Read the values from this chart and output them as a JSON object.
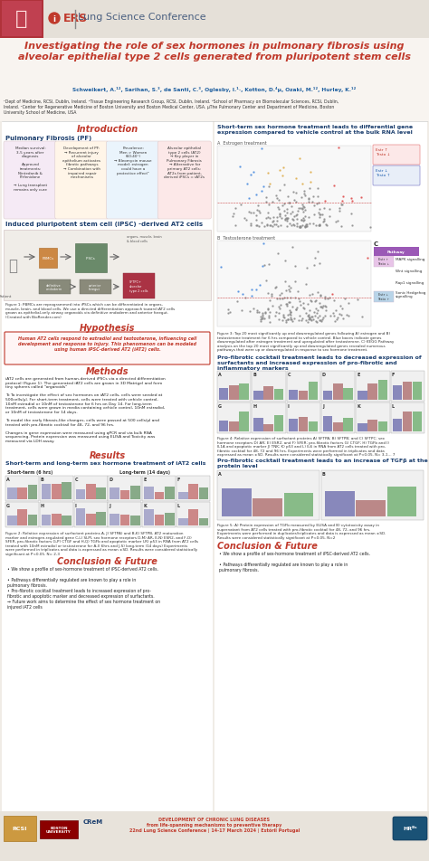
{
  "bg_color": "#f0ece6",
  "header_bg": "#e5e0d8",
  "title_text": "Investigating the role of sex hormones in pulmonary fibrosis using\nalveolar epithelial type 2 cells generated from pluripotent stem cells",
  "title_color": "#c0392b",
  "authors": "Schweikert, A.¹², Sarihan, S.³, de Santi, C.³, Oglesby, I.¹·, Kotton, D.⁴µ, Ozaki, M.¹², Hurley, K.¹²",
  "affiliations": "¹Dept of Medicine, RCSI, Dublin, Ireland. ²Tissue Engineering Research Group, RCSI, Dublin, Ireland. ³School of Pharmacy on Biomolecular Sciences, RCSI, Dublin,\nIreland. ⁴Center for Regenerative Medicine of Boston University and Boston Medical Center, USA. µThe Pulmonary Center and Department of Medicine, Boston\nUniversity School of Medicine, USA",
  "intro_title": "Introduction",
  "pf_title": "Pulmonary Fibrosis (PF)",
  "pf_box_colors": [
    "#f5eaf5",
    "#fff5e8",
    "#eaf4fc",
    "#fce8e8"
  ],
  "pf_box_contents": [
    "Median survival:\n3-5 years after\ndiagnosis\n\nApproved\ntreatments:\nNintedanib &\nPirfenidone\n\n→ Lung transplant\nremains only cure",
    "Development of PF:\n→ Recurrent injury\nof alveolar\nepithelium activates\nfibrotic pathways\n→ Combination with\nimpaired repair\nmechanisms",
    "Prevalence:\nMen > Women\n(60:40°)\n→ Bleomycin mouse\nmodel: estrogen\ncould have a\nprotective effect²",
    "Alveolar epithelial\ntype 2 cells (AT2)\n→ Key player in\nPulmonary Fibrosis\n→ Alternative for\nprimary AT2 cells:\nAT2s from patient-\nderived iPSCs = iAT2s"
  ],
  "ipsc_title": "Induced pluripotent stem cell (iPSC) -derived AT2 cells",
  "fig1_caption": "Figure 1: PBMCs are reprogrammed into iPSCs which can be differentiated in organs,\nmuscle, brain, and blood cells. We use a directed differentiation approach toward iAT2 cells\ngrown as epithelial-only airway organoids via definitive endoderm and anterior foregut.\n(Created with BioRender.com)",
  "hypothesis_title": "Hypothesis",
  "hypothesis_text": "Human AT2 cells respond to estradiol and testosterone, influencing cell\ndevelopment and response to injury. This phenomenon can be modeled\nusing human iPSC-derived AT2 (iAT2) cells.",
  "methods_title": "Methods",
  "methods_text": "iAT2 cells are generated from human-derived iPSCs via a directed differentiation\nprotocol (Figure 1). The generated iAT2 cells are grown in 3D Matrigel and form\ntiny spheres called “organoids”\n\nTo To investigate the effect of sex hormones on iAT2 cells, cells were seeded at\n500cells/μl. For short-term treatment, cells were treated with vehicle control,\n10nM estradiol or 10nM of testosterone for 6 hrs on Day 14. For long-term\ntreatment, cells were grown in media containing vehicle control, 10nM estradiol,\nor 10nM of testosterone for 14 days.\n\nTo model the early fibrosis-like changes, cells were passed at 500 cells/μl and\ntreated with pro-fibrotic cocktail for 48, 72, and 96 hrs.\n\nChanges in gene expression were measured using qPCR and via bulk RNA\nsequencing. Protein expression was measured using ELISA and Toxicity was\nmeasured via LDH assay.",
  "results_title": "Results",
  "short_long_title": "Short-term and long-term sex hormone treatment of iAT2 cells",
  "short_term_label": "Short-term (6 hrs)",
  "long_term_label": "Long-term (14 days)",
  "fig2_caption": "Figure 2: Relative expression of surfactant proteins A, J) SFTPA) and B,K) SFTPB, AT2 maturation\nmarker and estrogen-regulated gene C,L) SLPI, sex hormone receptors D,M) AR, E,N) ESR2, and F,O)\nSFER, pro-fibrotic factors G,P) CTGF and H,Q) TGFb and apoptotic marker I,R) p53 in RNA from AT2 cells\ntreated with 10nM estradiol or testosterone for A-I) 6hrs and J-S) long-term (14 days) Experiments\nwere performed in triplicates and data is expressed as mean ±SD. Results were considered statistically\nsignificant at P<0.05. N= 2-3",
  "conclusion_title": "Conclusion & Future",
  "conclusion_color": "#c0392b",
  "conclusion_bullets": [
    "• We show a profile of sex-hormone treatment of iPSC-derived AT2 cells.",
    "• Pathways differentially regulated are known to play a role in\npulmonary fibrosis.",
    "• Pro-fibrotic cocktail treatment leads to increased expression of pro-\nfibrotic and apoptotic marker and decreased expression of surfactants.",
    "→ Future work aims to determine the effect of sex hormone treatment on\ninjured iAT2 cells"
  ],
  "right_sec1_title": "Short-term sex hormone treatment leads to differential gene\nexpression compared to vehicle control at the bulk RNA level",
  "right_sec2_title": "Pro-fibrotic cocktail treatment leads to decreased expression of\nsurfactants and increased expression of pro-fibrotic and\ninflammatory markers",
  "right_sec3_title": "Pro-fibrotic cocktail treatment leads to an increase of TGFβ at the\nprotein level",
  "fig3_caption": "Figure 3: Top 20 most significantly up and downregulated genes following A) estrogen and B)\ntestosterone treatment for 6 hrs compared to vehicle control. Blue boxes indicate genes\ndownregulated after estrogen treatment and upregulated after testosterone. C) KEGG Pathway\nanalysis on the top 20 most significantly up and downregulated genes revealed numerous\npathways that were up or downregulated in response to sex hormone treatment.",
  "fig4_caption": "Figure 4: Relative expression of surfactant proteins A) SFTPA; B) SFTPB; and C) SFTPC; sex\nhormone receptors D) AR; E) ESR2; and F) SFER; pro-fibrotic factors G) CTGF; H) TGFb and I)\nIL1A and apoptotic marker J) TNK; K) p53 and L) IL6 in RNA from AT2 cells treated with pro-\nfibrotic cocktail for 48, 72 and 96 hrs. Experiments were performed in triplicates and data\nexpressed as mean ±SD. Results were considered statistically significant at P<0.05. N= 3-1… 7",
  "fig5_caption": "Figure 5: A) Protein expression of TGFb measured by ELISA and B) cytotoxicity assay in\nsupernatant from AT2 cells treated with pro-fibrotic cocktail for 48, 72, and 96 hrs.\nExperiments were performed in duplicates/triplicates and data is expressed as mean ±SD.\nResults were considered statistically significant at P<0.05. N=2",
  "footer_center": "DEVELOPMENT OF CHRONIC LUNG DISEASES\nfrom life-spanning mechanisms to preventive therapy\n22nd Lung Science Conference | 14-17 March 2024 | Estóril Portugal",
  "pathway_rows": [
    "MAPK signalling",
    "Wnt signalling",
    "Rap1 signalling",
    "Sonic Hedgehog\nsignalling"
  ],
  "pathway_colors_left": [
    "#e8b4e8",
    "none",
    "none",
    "#aaccee"
  ],
  "pathway_legend_left": [
    "Estr ↑\nTesto ↓",
    "",
    "",
    "Estr ↓\nTesto ↑"
  ],
  "accent_red": "#c0392b",
  "accent_blue": "#2980b9",
  "accent_teal": "#1a7a8a",
  "dark_blue": "#1c3f6e"
}
